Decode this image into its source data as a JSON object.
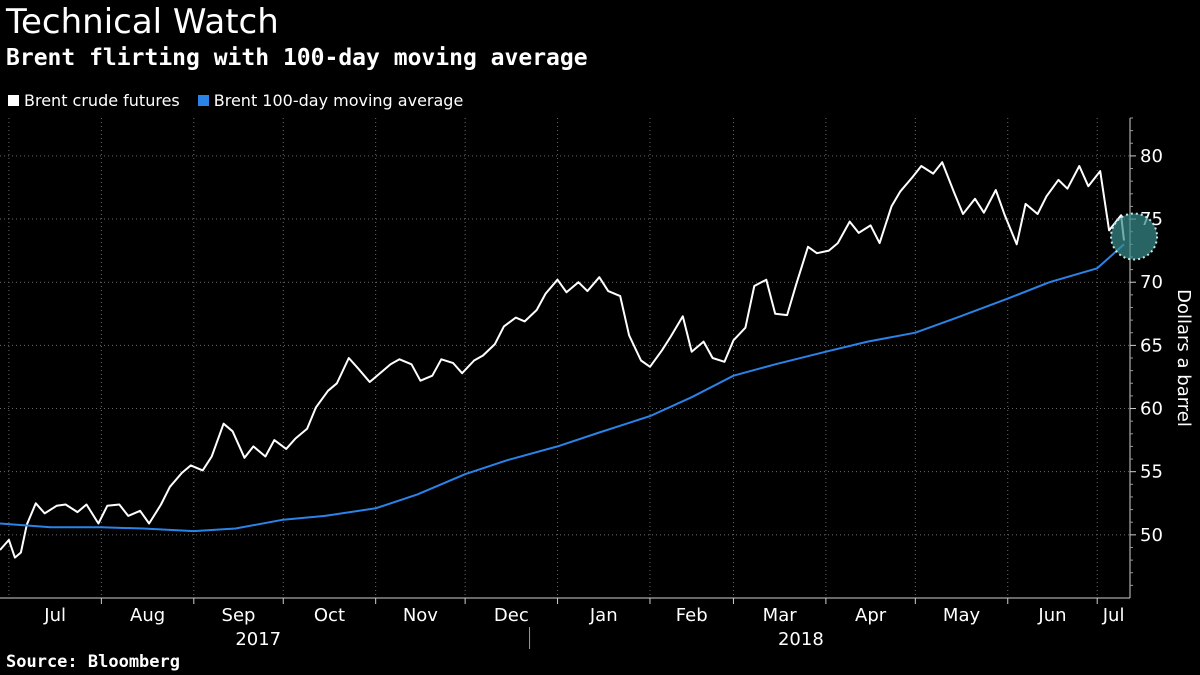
{
  "header": {
    "title": "Technical Watch",
    "subtitle": "Brent flirting with 100-day moving average"
  },
  "legend": [
    {
      "label": "Brent crude futures",
      "color": "#ffffff"
    },
    {
      "label": "Brent 100-day moving average",
      "color": "#2b83e8"
    }
  ],
  "source": "Source: Bloomberg",
  "chart_data": {
    "type": "line",
    "ylabel": "Dollars a barrel",
    "ylim": [
      45,
      83
    ],
    "yticks": [
      50,
      55,
      60,
      65,
      70,
      75,
      80
    ],
    "x_domain": [
      "2017-06-28",
      "2018-07-12"
    ],
    "month_ticks": [
      {
        "label": "Jul",
        "date": "2017-07-01"
      },
      {
        "label": "Aug",
        "date": "2017-08-01"
      },
      {
        "label": "Sep",
        "date": "2017-09-01"
      },
      {
        "label": "Oct",
        "date": "2017-10-01"
      },
      {
        "label": "Nov",
        "date": "2017-11-01"
      },
      {
        "label": "Dec",
        "date": "2017-12-01"
      },
      {
        "label": "Jan",
        "date": "2018-01-01"
      },
      {
        "label": "Feb",
        "date": "2018-02-01"
      },
      {
        "label": "Mar",
        "date": "2018-03-01"
      },
      {
        "label": "Apr",
        "date": "2018-04-01"
      },
      {
        "label": "May",
        "date": "2018-05-01"
      },
      {
        "label": "Jun",
        "date": "2018-06-01"
      },
      {
        "label": "Jul",
        "date": "2018-07-01"
      }
    ],
    "year_labels": [
      {
        "label": "2017",
        "date": "2017-10-01"
      },
      {
        "label": "2018",
        "date": "2018-04-01"
      }
    ],
    "grid": true,
    "legend_position": "top-left",
    "highlight": {
      "date": "2018-07-10",
      "value": 73.3,
      "color": "#3a8f8f"
    },
    "series": [
      {
        "name": "Brent crude futures",
        "color": "#ffffff",
        "x": [
          "2017-06-28",
          "2017-07-01",
          "2017-07-03",
          "2017-07-05",
          "2017-07-07",
          "2017-07-10",
          "2017-07-13",
          "2017-07-17",
          "2017-07-20",
          "2017-07-24",
          "2017-07-27",
          "2017-07-31",
          "2017-08-03",
          "2017-08-07",
          "2017-08-10",
          "2017-08-14",
          "2017-08-17",
          "2017-08-21",
          "2017-08-24",
          "2017-08-28",
          "2017-08-31",
          "2017-09-04",
          "2017-09-07",
          "2017-09-11",
          "2017-09-14",
          "2017-09-18",
          "2017-09-21",
          "2017-09-25",
          "2017-09-28",
          "2017-10-02",
          "2017-10-05",
          "2017-10-09",
          "2017-10-12",
          "2017-10-16",
          "2017-10-19",
          "2017-10-23",
          "2017-10-26",
          "2017-10-30",
          "2017-11-02",
          "2017-11-06",
          "2017-11-09",
          "2017-11-13",
          "2017-11-16",
          "2017-11-20",
          "2017-11-23",
          "2017-11-27",
          "2017-11-30",
          "2017-12-04",
          "2017-12-07",
          "2017-12-11",
          "2017-12-14",
          "2017-12-18",
          "2017-12-21",
          "2017-12-25",
          "2017-12-28",
          "2018-01-01",
          "2018-01-04",
          "2018-01-08",
          "2018-01-11",
          "2018-01-15",
          "2018-01-18",
          "2018-01-22",
          "2018-01-25",
          "2018-01-29",
          "2018-02-01",
          "2018-02-05",
          "2018-02-08",
          "2018-02-12",
          "2018-02-15",
          "2018-02-19",
          "2018-02-22",
          "2018-02-26",
          "2018-03-01",
          "2018-03-05",
          "2018-03-08",
          "2018-03-12",
          "2018-03-15",
          "2018-03-19",
          "2018-03-22",
          "2018-03-26",
          "2018-03-29",
          "2018-04-02",
          "2018-04-05",
          "2018-04-09",
          "2018-04-12",
          "2018-04-16",
          "2018-04-19",
          "2018-04-23",
          "2018-04-26",
          "2018-04-30",
          "2018-05-03",
          "2018-05-07",
          "2018-05-10",
          "2018-05-14",
          "2018-05-17",
          "2018-05-21",
          "2018-05-24",
          "2018-05-28",
          "2018-05-31",
          "2018-06-04",
          "2018-06-07",
          "2018-06-11",
          "2018-06-14",
          "2018-06-18",
          "2018-06-21",
          "2018-06-25",
          "2018-06-28",
          "2018-07-02",
          "2018-07-05",
          "2018-07-09",
          "2018-07-10"
        ],
        "values": [
          48.8,
          49.6,
          48.2,
          48.6,
          50.8,
          52.5,
          51.7,
          52.3,
          52.4,
          51.8,
          52.4,
          50.9,
          52.3,
          52.4,
          51.5,
          51.9,
          50.9,
          52.4,
          53.8,
          54.9,
          55.5,
          55.1,
          56.2,
          58.8,
          58.2,
          56.1,
          57.0,
          56.2,
          57.5,
          56.8,
          57.6,
          58.4,
          60.1,
          61.4,
          62.0,
          64.0,
          63.2,
          62.1,
          62.7,
          63.5,
          63.9,
          63.5,
          62.2,
          62.6,
          63.9,
          63.6,
          62.8,
          63.8,
          64.2,
          65.1,
          66.5,
          67.2,
          66.9,
          67.8,
          69.1,
          70.2,
          69.2,
          70.0,
          69.3,
          70.4,
          69.3,
          68.9,
          65.8,
          63.8,
          63.3,
          64.6,
          65.7,
          67.3,
          64.5,
          65.3,
          64.0,
          63.7,
          65.4,
          66.4,
          69.7,
          70.2,
          67.5,
          67.4,
          69.8,
          72.8,
          72.3,
          72.5,
          73.1,
          74.8,
          73.9,
          74.5,
          73.1,
          76.0,
          77.2,
          78.3,
          79.2,
          78.6,
          79.5,
          77.1,
          75.4,
          76.6,
          75.5,
          77.3,
          75.3,
          73.0,
          76.2,
          75.4,
          76.8,
          78.1,
          77.4,
          79.2,
          77.6,
          78.8,
          74.1,
          75.3,
          73.3
        ]
      },
      {
        "name": "Brent 100-day moving average",
        "color": "#2b83e8",
        "x": [
          "2017-06-28",
          "2017-07-15",
          "2017-08-01",
          "2017-08-15",
          "2017-09-01",
          "2017-09-15",
          "2017-10-01",
          "2017-10-15",
          "2017-11-01",
          "2017-11-15",
          "2017-12-01",
          "2017-12-15",
          "2018-01-01",
          "2018-01-15",
          "2018-02-01",
          "2018-02-15",
          "2018-03-01",
          "2018-03-15",
          "2018-04-01",
          "2018-04-15",
          "2018-05-01",
          "2018-05-15",
          "2018-06-01",
          "2018-06-15",
          "2018-07-01",
          "2018-07-10"
        ],
        "values": [
          50.9,
          50.6,
          50.6,
          50.5,
          50.3,
          50.5,
          51.2,
          51.5,
          52.1,
          53.2,
          54.8,
          55.9,
          57.0,
          58.1,
          59.4,
          60.9,
          62.6,
          63.5,
          64.5,
          65.3,
          66.0,
          67.2,
          68.7,
          70.0,
          71.1,
          73.0
        ]
      }
    ]
  }
}
